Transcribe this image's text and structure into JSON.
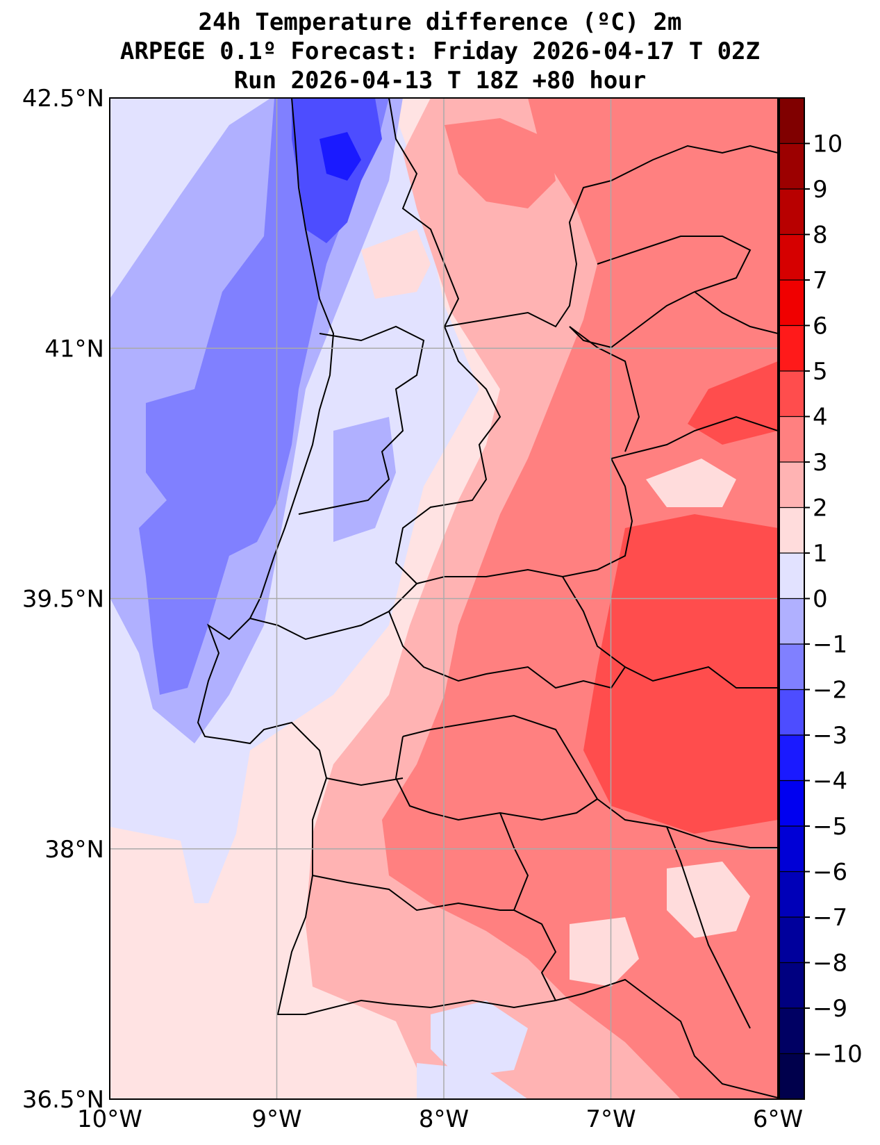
{
  "title": {
    "line1": "24h Temperature difference (ºC) 2m",
    "line2": "ARPEGE 0.1º Forecast: Friday 2026-04-17 T 02Z",
    "line3": "Run 2026-04-13 T 18Z +80 hour"
  },
  "map": {
    "lon_range": [
      -10,
      -6
    ],
    "lat_range": [
      36.5,
      42.5
    ],
    "lon_ticks": [
      {
        "value": -10,
        "label": "10°W"
      },
      {
        "value": -9,
        "label": "9°W"
      },
      {
        "value": -8,
        "label": "8°W"
      },
      {
        "value": -7,
        "label": "7°W"
      },
      {
        "value": -6,
        "label": "6°W"
      }
    ],
    "lat_ticks": [
      {
        "value": 42.5,
        "label": "42.5°N"
      },
      {
        "value": 41,
        "label": "41°N"
      },
      {
        "value": 39.5,
        "label": "39.5°N"
      },
      {
        "value": 38,
        "label": "38°N"
      },
      {
        "value": 36.5,
        "label": "36.5°N"
      }
    ],
    "grid": true
  },
  "colorbar": {
    "min": -11,
    "max": 11,
    "tick_values": [
      10,
      9,
      8,
      7,
      6,
      5,
      4,
      3,
      2,
      1,
      0,
      -1,
      -2,
      -3,
      -4,
      -5,
      -6,
      -7,
      -8,
      -9,
      -10
    ],
    "tick_labels": [
      "10",
      "9",
      "8",
      "7",
      "6",
      "5",
      "4",
      "3",
      "2",
      "1",
      "0",
      "−1",
      "−2",
      "−3",
      "−4",
      "−5",
      "−6",
      "−7",
      "−8",
      "−9",
      "−10"
    ],
    "colors_top_to_bottom": [
      "#800000",
      "#9c0000",
      "#b80000",
      "#d60000",
      "#f00000",
      "#ff1a1a",
      "#ff4d4d",
      "#ff8080",
      "#ffb3b3",
      "#ffdcdc",
      "#e2e2ff",
      "#b0b0ff",
      "#8080ff",
      "#4d4dff",
      "#1a1aff",
      "#0000f0",
      "#0000d6",
      "#0000b8",
      "#00009c",
      "#000080",
      "#000063",
      "#00004c"
    ]
  }
}
